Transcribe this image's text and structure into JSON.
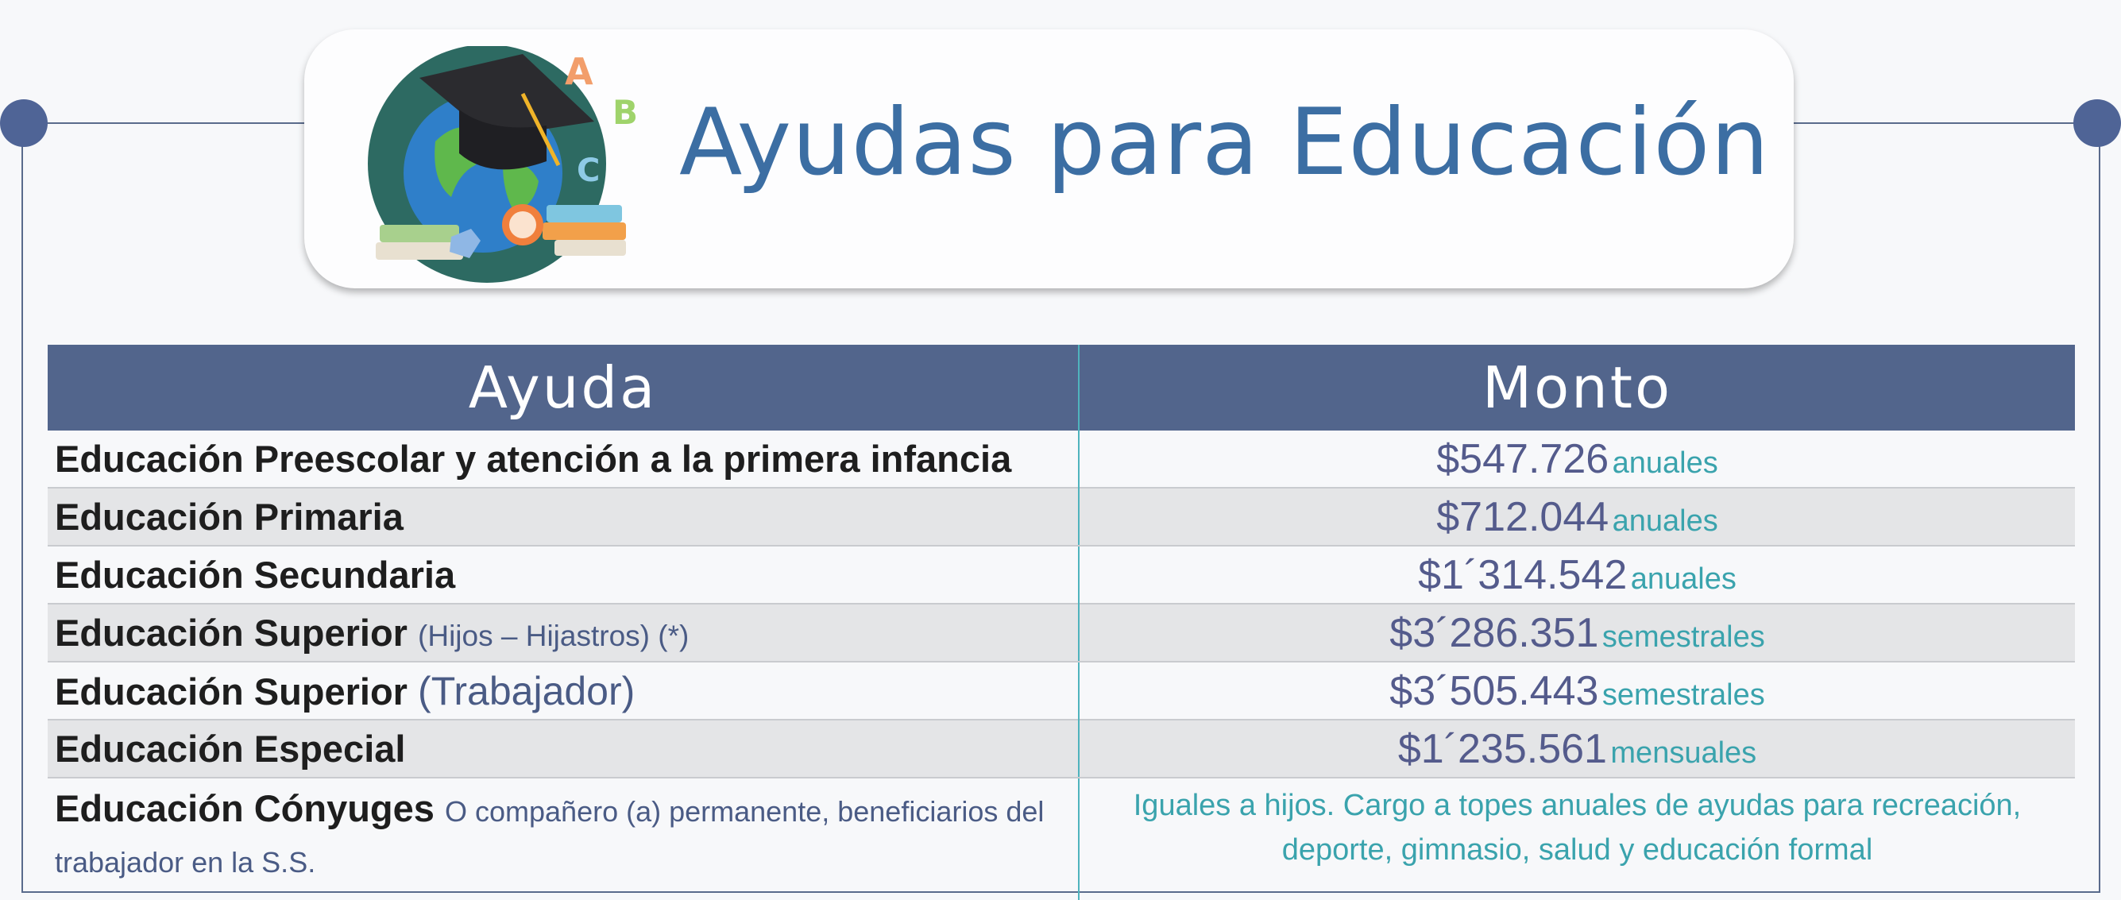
{
  "header": {
    "title": "Ayudas para Educación",
    "emblem_icon": "graduation-globe-icon",
    "emblem_letters": [
      "A",
      "B",
      "C"
    ]
  },
  "colors": {
    "header_fill": "#52658c",
    "title": "#3c6ea3",
    "unit_text": "#3aa3ad",
    "amount_text": "#545b8c",
    "row_shade": "#e4e5e7",
    "frame_dot": "#4f6496"
  },
  "table": {
    "headers": {
      "ayuda": "Ayuda",
      "monto": "Monto"
    },
    "rows": [
      {
        "ayuda": "Educación Preescolar y atención a la primera infancia",
        "amount": "$547.726",
        "unit": "anuales"
      },
      {
        "ayuda": "Educación Primaria",
        "amount": "$712.044",
        "unit": "anuales"
      },
      {
        "ayuda": "Educación Secundaria",
        "amount": "$1´314.542",
        "unit": "anuales"
      },
      {
        "ayuda": "Educación Superior",
        "note": "(Hijos – Hijastros) (*)",
        "amount": "$3´286.351",
        "unit": "semestrales"
      },
      {
        "ayuda": "Educación Superior",
        "note": "(Trabajador)",
        "amount": "$3´505.443",
        "unit": "semestrales"
      },
      {
        "ayuda": "Educación Especial",
        "amount": "$1´235.561",
        "unit": "mensuales"
      },
      {
        "ayuda": "Educación Cónyuges",
        "note": "O compañero (a) permanente, beneficiarios del trabajador en la S.S.",
        "monto_text": "Iguales a hijos. Cargo a topes anuales de ayudas para recreación, deporte, gimnasio, salud y educación formal"
      }
    ]
  }
}
